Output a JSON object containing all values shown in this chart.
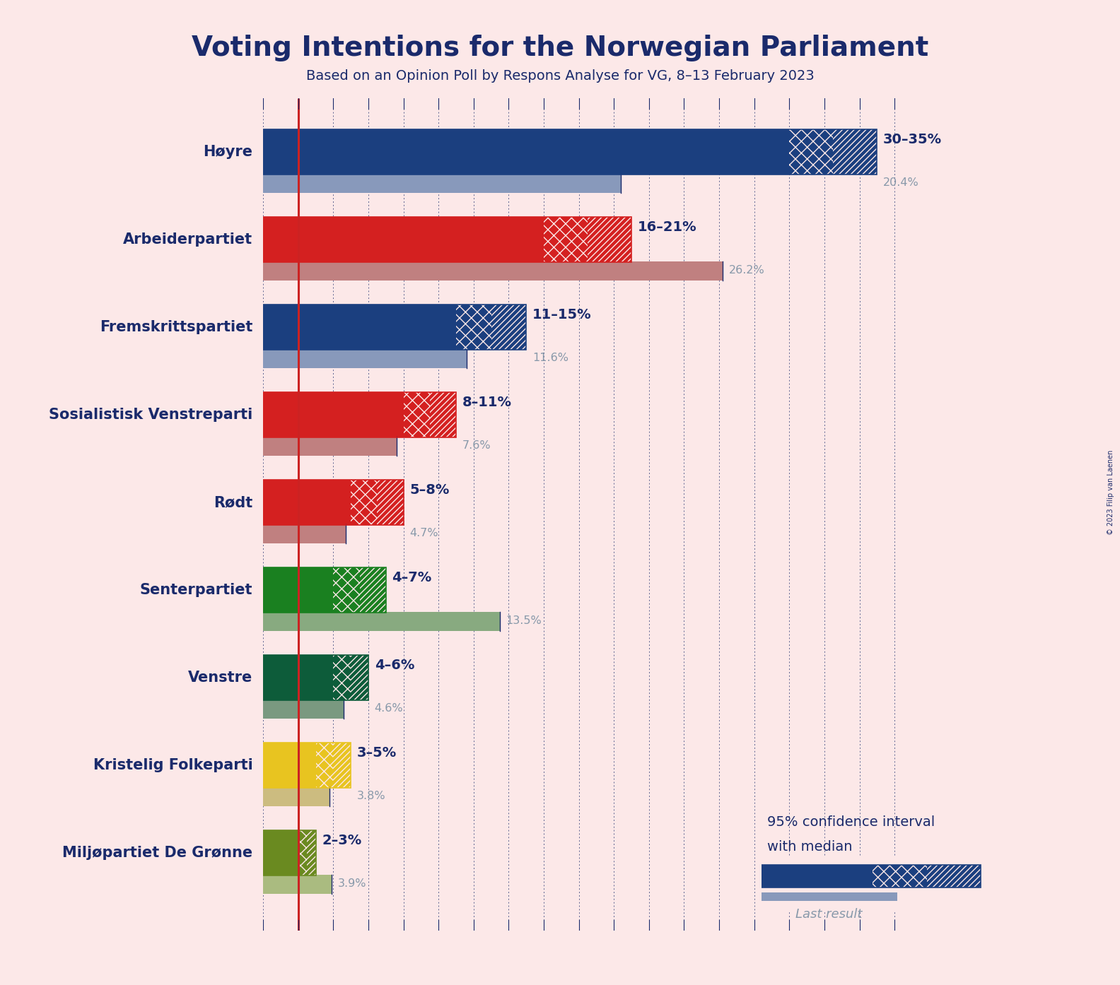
{
  "title": "Voting Intentions for the Norwegian Parliament",
  "subtitle": "Based on an Opinion Poll by Respons Analyse for VG, 8–13 February 2023",
  "background_color": "#fce8e8",
  "parties": [
    "Høyre",
    "Arbeiderpartiet",
    "Fremskrittspartiet",
    "Sosialistisk Venstreparti",
    "Rødt",
    "Senterpartiet",
    "Venstre",
    "Kristelig Folkeparti",
    "Miljøpartiet De Grønne"
  ],
  "ci_low": [
    30,
    16,
    11,
    8,
    5,
    4,
    4,
    3,
    2
  ],
  "ci_high": [
    35,
    21,
    15,
    11,
    8,
    7,
    6,
    5,
    3
  ],
  "last_result": [
    20.4,
    26.2,
    11.6,
    7.6,
    4.7,
    13.5,
    4.6,
    3.8,
    3.9
  ],
  "ci_labels": [
    "30–35%",
    "16–21%",
    "11–15%",
    "8–11%",
    "5–8%",
    "4–7%",
    "4–6%",
    "3–5%",
    "2–3%"
  ],
  "bar_colors": [
    "#1b3f7f",
    "#d42020",
    "#1b3f7f",
    "#d42020",
    "#d42020",
    "#1a8020",
    "#0d5c3a",
    "#e8c420",
    "#6a8a20"
  ],
  "last_result_colors": [
    "#8899bb",
    "#c08080",
    "#8899bb",
    "#c08080",
    "#c08080",
    "#88aa80",
    "#7a9980",
    "#ccbc80",
    "#aabb80"
  ],
  "title_color": "#1a2a6b",
  "subtitle_color": "#1a2a6b",
  "label_color": "#1a2a6b",
  "last_result_text_color": "#8899aa",
  "median_line_color": "#cc2222",
  "red_line_x": 2,
  "xlim": [
    0,
    38
  ],
  "copyright": "© 2023 Filip van Laenen",
  "dotted_line_color": "#1a2a6b"
}
